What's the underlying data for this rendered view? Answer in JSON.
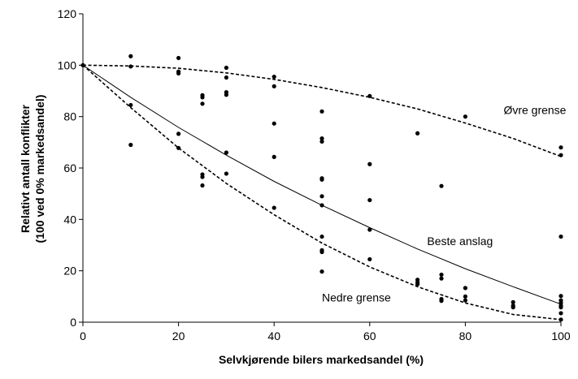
{
  "chart_data": {
    "type": "scatter",
    "xlabel": "Selvkjørende bilers markedsandel (%)",
    "ylabel_line1": "Relativt antall konflikter",
    "ylabel_line2": "(100 ved 0% markedsandel)",
    "xlim": [
      0,
      100
    ],
    "ylim": [
      0,
      120
    ],
    "xticks": [
      0,
      20,
      40,
      60,
      80,
      100
    ],
    "yticks": [
      0,
      20,
      40,
      60,
      80,
      100,
      120
    ],
    "grid": false,
    "legend": "none",
    "series": [
      {
        "style": "markers",
        "color": "#000000",
        "points": [
          [
            0,
            100
          ],
          [
            10,
            103.5
          ],
          [
            10,
            99.5
          ],
          [
            10,
            84.5
          ],
          [
            10,
            69
          ],
          [
            20,
            102.8
          ],
          [
            20,
            97.5
          ],
          [
            20,
            96.8
          ],
          [
            20,
            73.3
          ],
          [
            20,
            67.8
          ],
          [
            25,
            88.3
          ],
          [
            25,
            87.5
          ],
          [
            25,
            85
          ],
          [
            25,
            57.5
          ],
          [
            25,
            56.5
          ],
          [
            25,
            53.2
          ],
          [
            30,
            99
          ],
          [
            30,
            95.2
          ],
          [
            30,
            89.5
          ],
          [
            30,
            88.5
          ],
          [
            30,
            66
          ],
          [
            30,
            57.8
          ],
          [
            40,
            95.5
          ],
          [
            40,
            91.8
          ],
          [
            40,
            77.3
          ],
          [
            40,
            64.3
          ],
          [
            40,
            44.5
          ],
          [
            50,
            82
          ],
          [
            50,
            71.5
          ],
          [
            50,
            70.3
          ],
          [
            50,
            56
          ],
          [
            50,
            55.5
          ],
          [
            50,
            49
          ],
          [
            50,
            45.5
          ],
          [
            50,
            33.3
          ],
          [
            50,
            28
          ],
          [
            50,
            27.3
          ],
          [
            50,
            19.7
          ],
          [
            60,
            88
          ],
          [
            60,
            61.5
          ],
          [
            60,
            47.5
          ],
          [
            60,
            36
          ],
          [
            60,
            24.5
          ],
          [
            70,
            73.5
          ],
          [
            70,
            16.5
          ],
          [
            70,
            15.5
          ],
          [
            70,
            14.8
          ],
          [
            75,
            53
          ],
          [
            75,
            18.5
          ],
          [
            75,
            17
          ],
          [
            75,
            9
          ],
          [
            75,
            8.3
          ],
          [
            80,
            80
          ],
          [
            80,
            13.3
          ],
          [
            80,
            10
          ],
          [
            80,
            8.5
          ],
          [
            90,
            7.8
          ],
          [
            90,
            6.5
          ],
          [
            90,
            5.8
          ],
          [
            100,
            68
          ],
          [
            100,
            65
          ],
          [
            100,
            33.3
          ],
          [
            100,
            10.2
          ],
          [
            100,
            8.5
          ],
          [
            100,
            7.5
          ],
          [
            100,
            6.5
          ],
          [
            100,
            5.8
          ],
          [
            100,
            3.5
          ],
          [
            100,
            1
          ]
        ]
      },
      {
        "style": "dashed",
        "color": "#000000",
        "x": [
          0,
          10,
          20,
          30,
          40,
          50,
          60,
          70,
          80,
          90,
          100
        ],
        "y": [
          100,
          99.7,
          98.8,
          97.0,
          94.5,
          91.3,
          87.5,
          83.0,
          77.5,
          71.5,
          64.5
        ]
      },
      {
        "style": "solid",
        "color": "#000000",
        "x": [
          0,
          10,
          20,
          30,
          40,
          50,
          60,
          70,
          80,
          90,
          100
        ],
        "y": [
          100,
          87.5,
          75.8,
          65.0,
          54.8,
          45.5,
          36.8,
          28.5,
          20.8,
          13.8,
          7.0
        ]
      },
      {
        "style": "dashed",
        "color": "#000000",
        "x": [
          0,
          10,
          20,
          30,
          40,
          50,
          60,
          70,
          80,
          90,
          100
        ],
        "y": [
          100,
          83.5,
          67.8,
          54.0,
          41.8,
          30.8,
          21.5,
          13.8,
          7.5,
          3.0,
          1.0
        ]
      }
    ],
    "annotations": [
      {
        "text": "Øvre grense",
        "x": 88,
        "y": 81
      },
      {
        "text": "Beste anslag",
        "x": 72,
        "y": 30
      },
      {
        "text": "Nedre grense",
        "x": 50,
        "y": 8
      }
    ]
  }
}
